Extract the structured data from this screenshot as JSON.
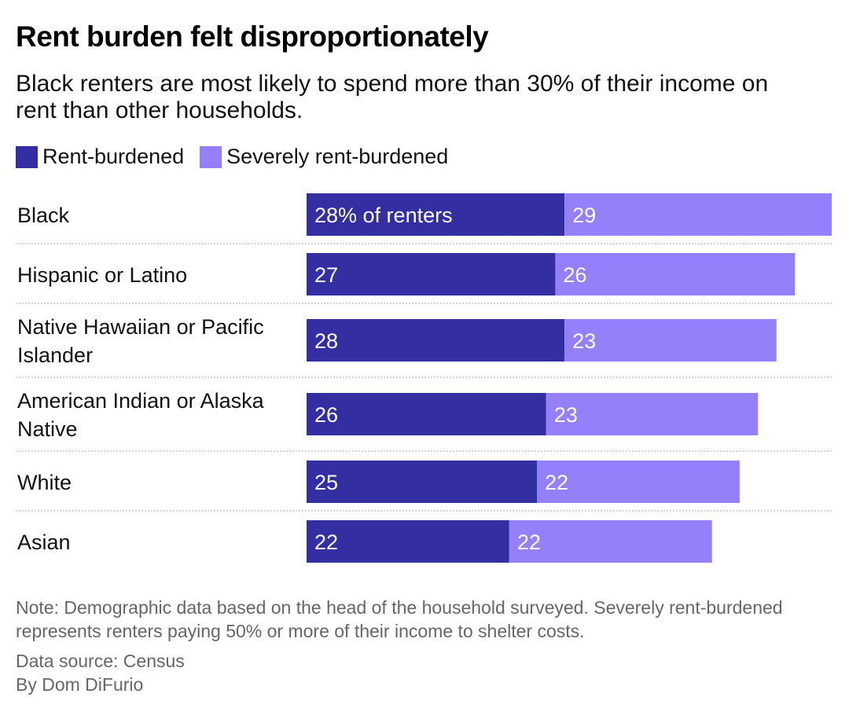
{
  "header": {
    "title": "Rent burden felt disproportionately",
    "subtitle": "Black renters are most likely to spend more than 30% of their income on rent than other households."
  },
  "legend": [
    {
      "label": "Rent-burdened",
      "color": "#332ea1"
    },
    {
      "label": "Severely rent-burdened",
      "color": "#9580fc"
    }
  ],
  "chart_data": {
    "type": "bar",
    "orientation": "horizontal",
    "stacked": true,
    "title": "Rent burden felt disproportionately",
    "categories": [
      [
        "Black"
      ],
      [
        "Hispanic or Latino"
      ],
      [
        "Native Hawaiian or Pacific",
        "Islander"
      ],
      [
        "American Indian or Alaska",
        "Native"
      ],
      [
        "White"
      ],
      [
        "Asian"
      ]
    ],
    "series": [
      {
        "name": "Rent-burdened",
        "color": "#332ea1",
        "values": [
          28,
          27,
          28,
          26,
          25,
          22
        ],
        "labels": [
          "28% of renters",
          "27",
          "28",
          "26",
          "25",
          "22"
        ]
      },
      {
        "name": "Severely rent-burdened",
        "color": "#9580fc",
        "values": [
          29,
          26,
          23,
          23,
          22,
          22
        ],
        "labels": [
          "29",
          "26",
          "23",
          "23",
          "22",
          "22"
        ]
      }
    ],
    "xlim": [
      0,
      57
    ],
    "grid": false,
    "legend_position": "top-left",
    "units": "% of renters"
  },
  "footer": {
    "note": "Note: Demographic data based on the head of the household surveyed. Severely rent-burdened represents renters paying 50% or more of their income to shelter costs.",
    "source": "Data source: Census",
    "byline": "By Dom DiFurio"
  }
}
